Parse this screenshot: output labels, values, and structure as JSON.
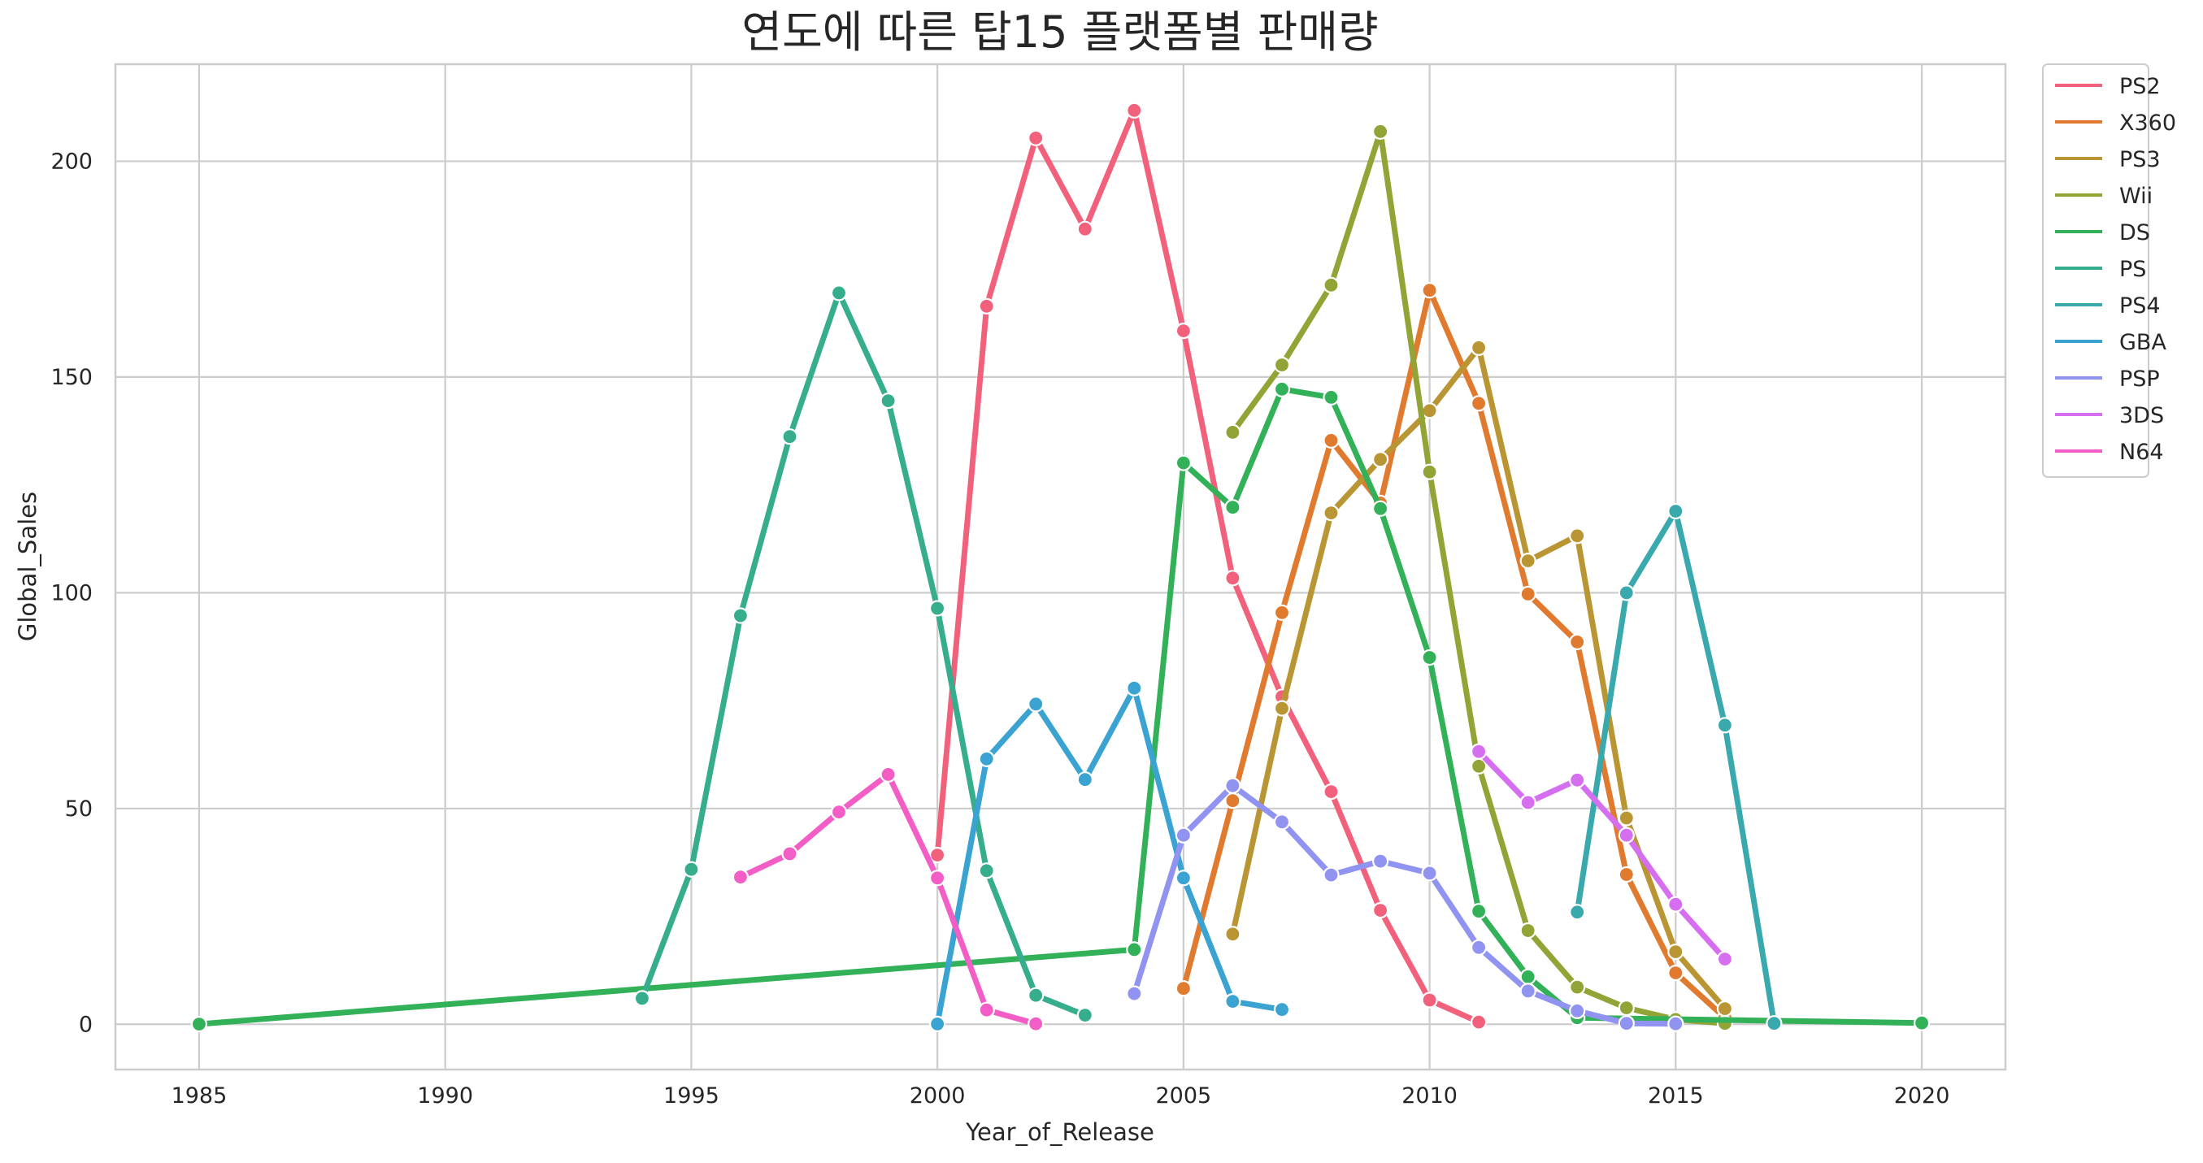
{
  "chart_data": {
    "type": "line",
    "title": "연도에 따른 탑15 플랫폼별 판매량",
    "xlabel": "Year_of_Release",
    "ylabel": "Global_Sales",
    "xlim": [
      1983.3,
      2021.7
    ],
    "ylim": [
      -10.5,
      222.5
    ],
    "xticks": [
      1985,
      1990,
      1995,
      2000,
      2005,
      2010,
      2015,
      2020
    ],
    "yticks": [
      0,
      50,
      100,
      150,
      200
    ],
    "grid": true,
    "legend_position": "outside-top-right",
    "series": [
      {
        "name": "PS2",
        "color": "#f1617c",
        "points": [
          [
            2000,
            39.2
          ],
          [
            2001,
            166.4
          ],
          [
            2002,
            205.4
          ],
          [
            2003,
            184.3
          ],
          [
            2004,
            211.8
          ],
          [
            2005,
            160.7
          ],
          [
            2006,
            103.4
          ],
          [
            2007,
            75.9
          ],
          [
            2008,
            53.9
          ],
          [
            2009,
            26.4
          ],
          [
            2010,
            5.6
          ],
          [
            2011,
            0.5
          ]
        ]
      },
      {
        "name": "X360",
        "color": "#e07a2e",
        "points": [
          [
            2005,
            8.3
          ],
          [
            2006,
            51.8
          ],
          [
            2007,
            95.4
          ],
          [
            2008,
            135.3
          ],
          [
            2009,
            120.8
          ],
          [
            2010,
            170.1
          ],
          [
            2011,
            143.9
          ],
          [
            2012,
            99.7
          ],
          [
            2013,
            88.6
          ],
          [
            2014,
            34.7
          ],
          [
            2015,
            11.9
          ],
          [
            2016,
            1.5
          ]
        ]
      },
      {
        "name": "PS3",
        "color": "#b99533",
        "points": [
          [
            2006,
            20.9
          ],
          [
            2007,
            73.2
          ],
          [
            2008,
            118.5
          ],
          [
            2009,
            130.9
          ],
          [
            2010,
            142.2
          ],
          [
            2011,
            156.8
          ],
          [
            2012,
            107.4
          ],
          [
            2013,
            113.2
          ],
          [
            2014,
            47.8
          ],
          [
            2015,
            16.8
          ],
          [
            2016,
            3.6
          ]
        ]
      },
      {
        "name": "Wii",
        "color": "#92a435",
        "points": [
          [
            2006,
            137.2
          ],
          [
            2007,
            152.8
          ],
          [
            2008,
            171.3
          ],
          [
            2009,
            206.9
          ],
          [
            2010,
            128.0
          ],
          [
            2011,
            59.8
          ],
          [
            2012,
            21.7
          ],
          [
            2013,
            8.6
          ],
          [
            2014,
            3.8
          ],
          [
            2015,
            1.1
          ],
          [
            2016,
            0.2
          ]
        ]
      },
      {
        "name": "DS",
        "color": "#32b158",
        "points": [
          [
            1985,
            0.02
          ],
          [
            2004,
            17.3
          ],
          [
            2005,
            130.1
          ],
          [
            2006,
            119.8
          ],
          [
            2007,
            147.2
          ],
          [
            2008,
            145.3
          ],
          [
            2009,
            119.5
          ],
          [
            2010,
            85.0
          ],
          [
            2011,
            26.2
          ],
          [
            2012,
            11.0
          ],
          [
            2013,
            1.5
          ],
          [
            2020,
            0.3
          ]
        ]
      },
      {
        "name": "PS",
        "color": "#36ad8c",
        "points": [
          [
            1994,
            6.0
          ],
          [
            1995,
            35.9
          ],
          [
            1996,
            94.7
          ],
          [
            1997,
            136.2
          ],
          [
            1998,
            169.5
          ],
          [
            1999,
            144.5
          ],
          [
            2000,
            96.4
          ],
          [
            2001,
            35.6
          ],
          [
            2002,
            6.7
          ],
          [
            2003,
            2.1
          ]
        ]
      },
      {
        "name": "PS4",
        "color": "#39a9ae",
        "points": [
          [
            2013,
            25.99
          ],
          [
            2014,
            100.0
          ],
          [
            2015,
            118.9
          ],
          [
            2016,
            69.3
          ],
          [
            2017,
            0.2
          ]
        ]
      },
      {
        "name": "GBA",
        "color": "#3aa3d1",
        "points": [
          [
            2000,
            0.07
          ],
          [
            2001,
            61.5
          ],
          [
            2002,
            74.2
          ],
          [
            2003,
            56.7
          ],
          [
            2004,
            77.9
          ],
          [
            2005,
            33.9
          ],
          [
            2006,
            5.3
          ],
          [
            2007,
            3.4
          ]
        ]
      },
      {
        "name": "PSP",
        "color": "#9093f0",
        "points": [
          [
            2004,
            7.1
          ],
          [
            2005,
            43.8
          ],
          [
            2006,
            55.3
          ],
          [
            2007,
            46.9
          ],
          [
            2008,
            34.6
          ],
          [
            2009,
            37.8
          ],
          [
            2010,
            35.0
          ],
          [
            2011,
            17.8
          ],
          [
            2012,
            7.7
          ],
          [
            2013,
            3.1
          ],
          [
            2014,
            0.2
          ],
          [
            2015,
            0.1
          ]
        ]
      },
      {
        "name": "3DS",
        "color": "#d66ef0",
        "points": [
          [
            2011,
            63.2
          ],
          [
            2012,
            51.4
          ],
          [
            2013,
            56.6
          ],
          [
            2014,
            43.8
          ],
          [
            2015,
            27.8
          ],
          [
            2016,
            15.1
          ]
        ]
      },
      {
        "name": "N64",
        "color": "#f25ec5",
        "points": [
          [
            1996,
            34.1
          ],
          [
            1997,
            39.5
          ],
          [
            1998,
            49.2
          ],
          [
            1999,
            57.9
          ],
          [
            2000,
            33.9
          ],
          [
            2001,
            3.3
          ],
          [
            2002,
            0.1
          ]
        ]
      }
    ]
  }
}
